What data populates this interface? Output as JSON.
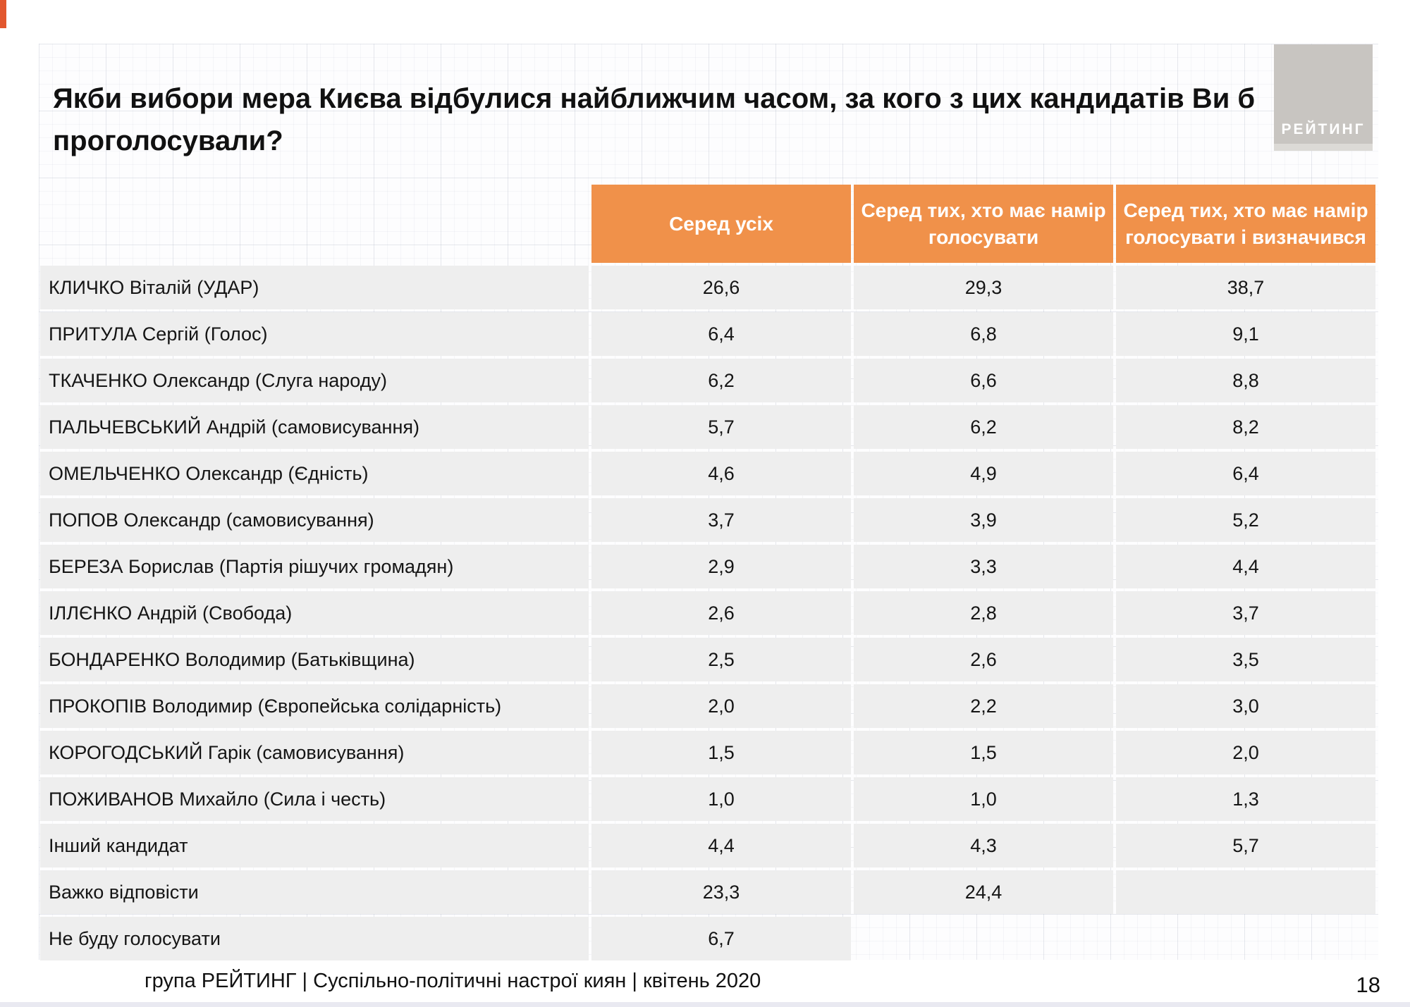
{
  "header": {
    "title": "Якби вибори мера Києва відбулися найближчим часом, за кого з цих кандидатів Ви б\nпроголосували?",
    "logo_text": "РЕЙТИНГ"
  },
  "footer": {
    "caption": "група РЕЙТИНГ | Суспільно-політичні настрої киян | квітень 2020",
    "page_number": "18"
  },
  "colors": {
    "accent_orange": "#f0914a",
    "row_gray": "#eeeeee",
    "logo_gray": "#c8c5c1",
    "corner_accent": "#e2572e"
  },
  "chart_data": {
    "type": "table",
    "title": "Якби вибори мера Києва відбулися найближчим часом, за кого з цих кандидатів Ви б проголосували?",
    "columns": [
      "Серед усіх",
      "Серед тих, хто має намір\nголосувати",
      "Серед тих, хто має намір\nголосувати і визначився"
    ],
    "rows": [
      {
        "label": "КЛИЧКО Віталій (УДАР)",
        "values": [
          "26,6",
          "29,3",
          "38,7"
        ]
      },
      {
        "label": "ПРИТУЛА Сергій (Голос)",
        "values": [
          "6,4",
          "6,8",
          "9,1"
        ]
      },
      {
        "label": "ТКАЧЕНКО Олександр (Слуга народу)",
        "values": [
          "6,2",
          "6,6",
          "8,8"
        ]
      },
      {
        "label": "ПАЛЬЧЕВСЬКИЙ Андрій (самовисування)",
        "values": [
          "5,7",
          "6,2",
          "8,2"
        ]
      },
      {
        "label": "ОМЕЛЬЧЕНКО Олександр (Єдність)",
        "values": [
          "4,6",
          "4,9",
          "6,4"
        ]
      },
      {
        "label": "ПОПОВ Олександр (самовисування)",
        "values": [
          "3,7",
          "3,9",
          "5,2"
        ]
      },
      {
        "label": "БЕРЕЗА Борислав (Партія рішучих громадян)",
        "values": [
          "2,9",
          "3,3",
          "4,4"
        ]
      },
      {
        "label": "ІЛЛЄНКО Андрій (Свобода)",
        "values": [
          "2,6",
          "2,8",
          "3,7"
        ]
      },
      {
        "label": "БОНДАРЕНКО Володимир (Батьківщина)",
        "values": [
          "2,5",
          "2,6",
          "3,5"
        ]
      },
      {
        "label": "ПРОКОПІВ Володимир (Європейська солідарність)",
        "values": [
          "2,0",
          "2,2",
          "3,0"
        ]
      },
      {
        "label": "КОРОГОДСЬКИЙ Гарік (самовисування)",
        "values": [
          "1,5",
          "1,5",
          "2,0"
        ]
      },
      {
        "label": "ПОЖИВАНОВ Михайло (Сила і честь)",
        "values": [
          "1,0",
          "1,0",
          "1,3"
        ]
      },
      {
        "label": "Інший кандидат",
        "values": [
          "4,4",
          "4,3",
          "5,7"
        ]
      },
      {
        "label": "Важко відповісти",
        "values": [
          "23,3",
          "24,4",
          ""
        ]
      },
      {
        "label": "Не буду голосувати",
        "values": [
          "6,7",
          null,
          null
        ]
      }
    ]
  }
}
